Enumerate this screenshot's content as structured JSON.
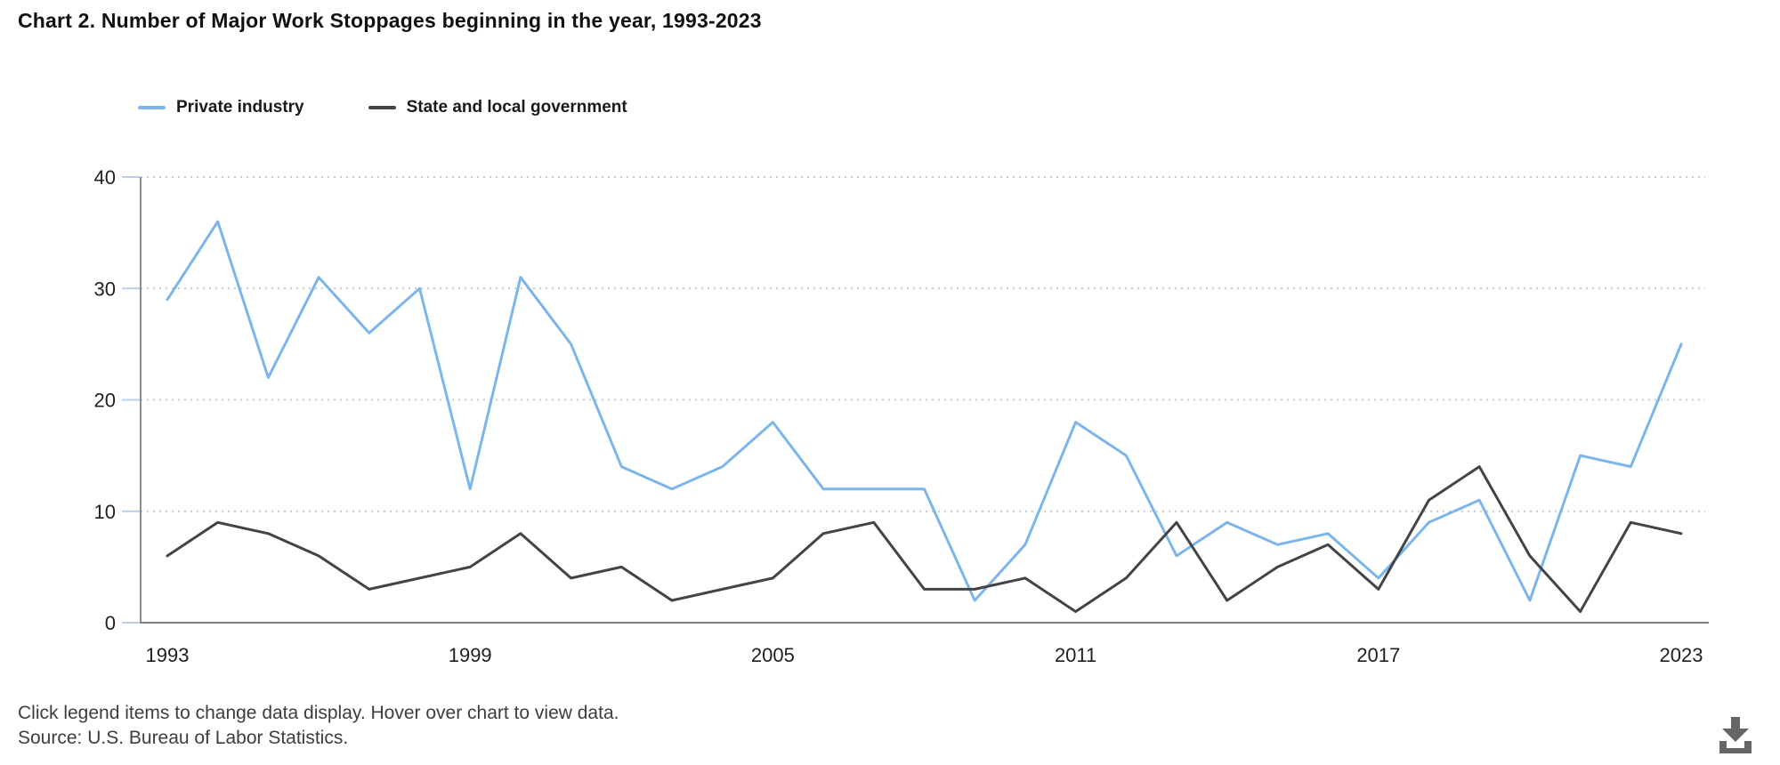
{
  "title": "Chart 2. Number of Major Work Stoppages beginning in the year, 1993-2023",
  "legend": {
    "items": [
      {
        "label": "Private industry",
        "color": "#7cb5ec"
      },
      {
        "label": "State and local government",
        "color": "#434348"
      }
    ]
  },
  "footer": {
    "hint": "Click legend items to change data display. Hover over chart to view data.",
    "source": "Source: U.S. Bureau of Labor Statistics."
  },
  "download": {
    "icon": "download-icon",
    "color": "#666666"
  },
  "chart_data": {
    "type": "line",
    "title": "Chart 2. Number of Major Work Stoppages beginning in the year, 1993-2023",
    "x": [
      1993,
      1994,
      1995,
      1996,
      1997,
      1998,
      1999,
      2000,
      2001,
      2002,
      2003,
      2004,
      2005,
      2006,
      2007,
      2008,
      2009,
      2010,
      2011,
      2012,
      2013,
      2014,
      2015,
      2016,
      2017,
      2018,
      2019,
      2020,
      2021,
      2022,
      2023
    ],
    "series": [
      {
        "name": "Private industry",
        "color": "#7cb5ec",
        "values": [
          29,
          36,
          22,
          31,
          26,
          30,
          12,
          31,
          25,
          14,
          12,
          14,
          18,
          12,
          12,
          12,
          2,
          7,
          18,
          15,
          6,
          9,
          7,
          8,
          4,
          9,
          11,
          2,
          15,
          14,
          25
        ]
      },
      {
        "name": "State and local government",
        "color": "#434348",
        "values": [
          6,
          9,
          8,
          6,
          3,
          4,
          5,
          8,
          4,
          5,
          2,
          3,
          4,
          8,
          9,
          3,
          3,
          4,
          1,
          4,
          9,
          2,
          5,
          7,
          3,
          11,
          14,
          6,
          1,
          9,
          8
        ]
      }
    ],
    "xlabel": "",
    "ylabel": "",
    "ylim": [
      0,
      40
    ],
    "yticks": [
      0,
      10,
      20,
      30,
      40
    ],
    "xticks": [
      1993,
      1999,
      2005,
      2011,
      2017,
      2023
    ],
    "grid": "horizontal-dotted",
    "grid_color": "#c9c9c9",
    "axis_color": "#808080",
    "tick_color": "#b9cfe9",
    "legend_position": "top-left"
  }
}
